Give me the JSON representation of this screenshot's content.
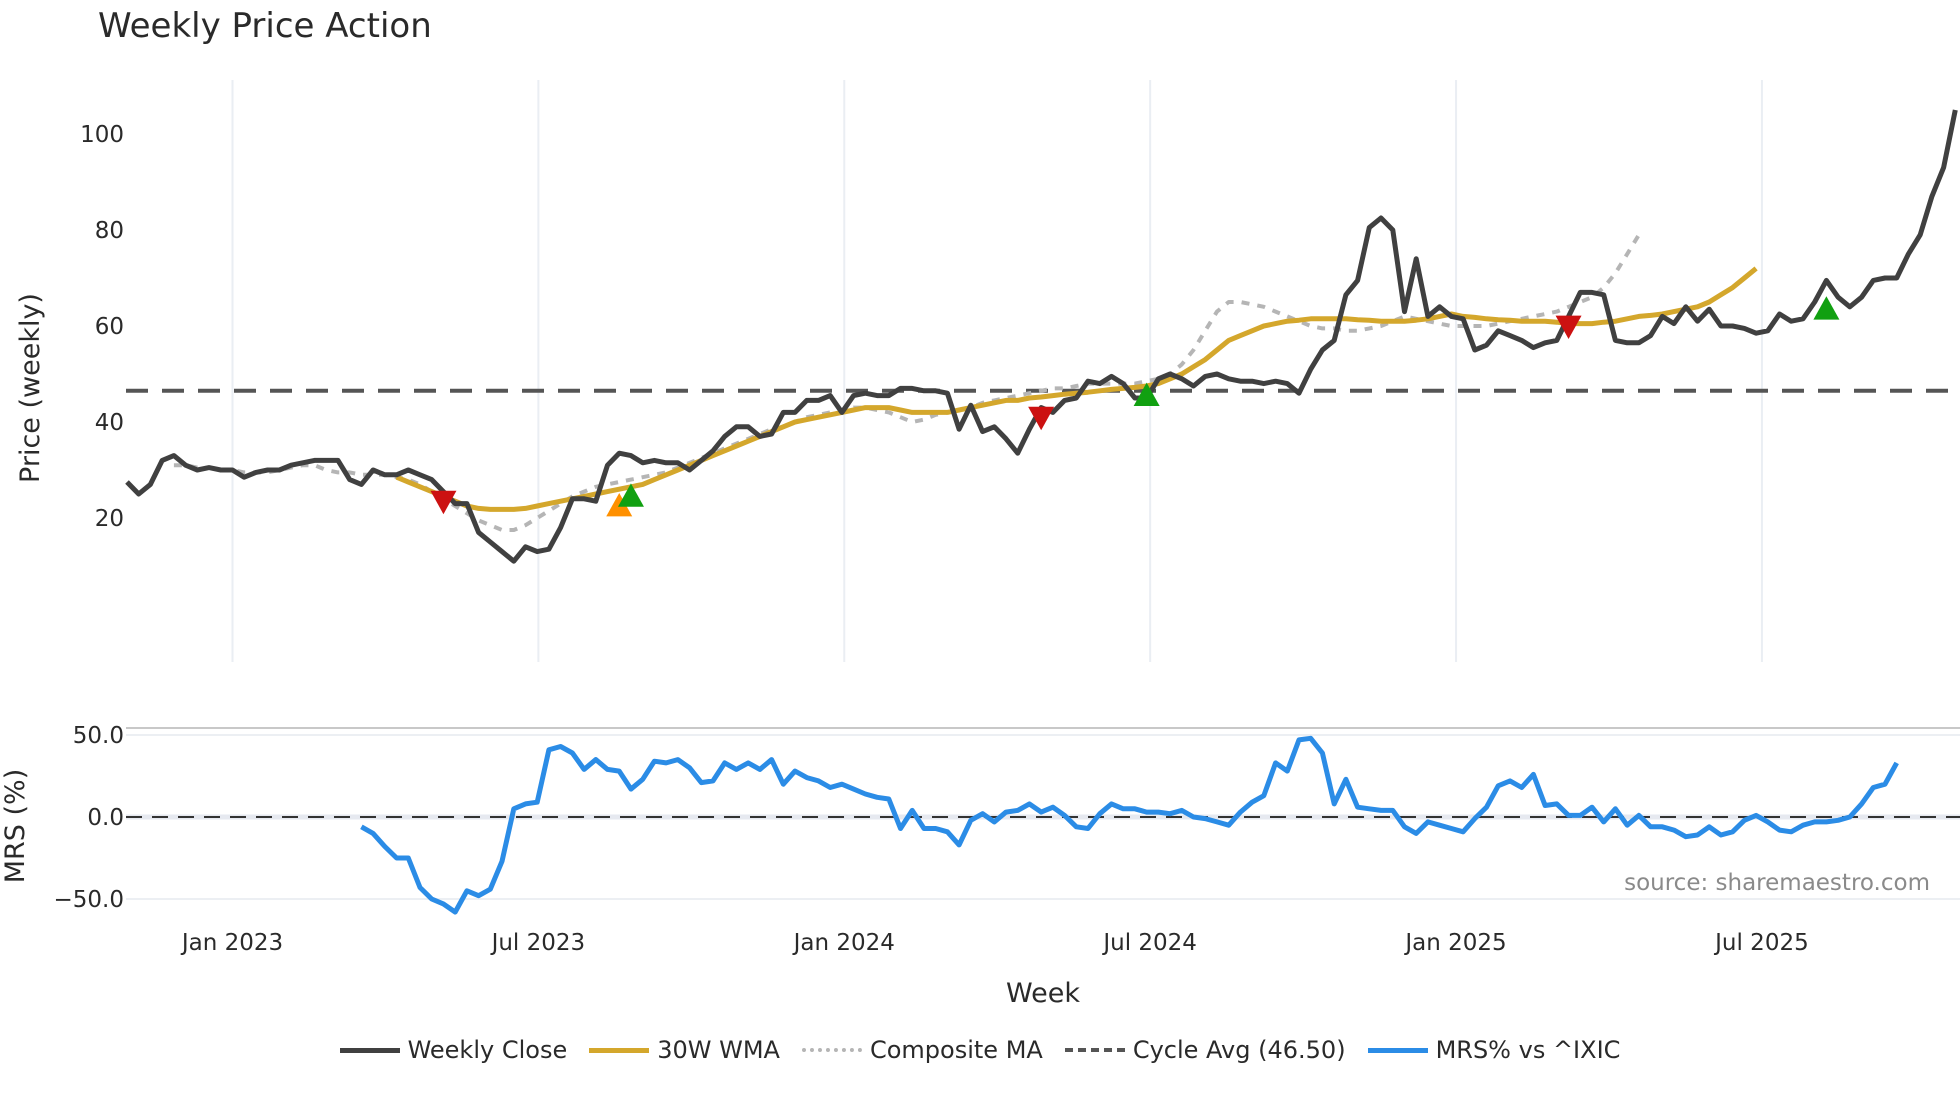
{
  "title": "Weekly Price Action",
  "source_label": "source: sharemaestro.com",
  "legend": [
    {
      "label": "Weekly Close",
      "color": "#404040",
      "style": "solid"
    },
    {
      "label": "30W WMA",
      "color": "#d4a72c",
      "style": "solid"
    },
    {
      "label": "Composite MA",
      "color": "#b5b5b5",
      "style": "dotted"
    },
    {
      "label": "Cycle Avg (46.50)",
      "color": "#555555",
      "style": "dashed"
    },
    {
      "label": "MRS% vs ^IXIC",
      "color": "#2b8ce6",
      "style": "solid"
    }
  ],
  "chart_data": [
    {
      "type": "line",
      "panel": "price",
      "title": "Weekly Price Action",
      "xlabel": "Week",
      "ylabel": "Price (weekly)",
      "yticks": [
        20,
        40,
        60,
        80,
        100
      ],
      "ylim": [
        5,
        112
      ],
      "xticks": [
        "Jan 2023",
        "Jul 2023",
        "Jan 2024",
        "Jul 2024",
        "Jan 2025",
        "Jul 2025"
      ],
      "x_start_week_offset_from_jan2023": -9,
      "grid": true,
      "series": [
        {
          "name": "Weekly Close",
          "color": "#404040",
          "start_index": 0,
          "values": [
            27.5,
            25,
            27,
            32,
            33,
            31,
            30,
            30.5,
            30,
            30,
            28.5,
            29.5,
            30,
            30,
            31,
            31.5,
            32,
            32,
            32,
            28,
            27,
            30,
            29,
            29,
            30,
            29,
            28,
            25.5,
            23,
            23,
            17,
            15,
            13,
            11,
            14,
            13,
            13.5,
            18,
            24,
            24,
            23.5,
            31,
            33.5,
            33,
            31.5,
            32,
            31.5,
            31.5,
            30,
            32,
            34,
            37,
            39,
            39,
            37,
            37.5,
            42,
            42,
            44.5,
            44.5,
            45.5,
            42,
            45.5,
            46,
            45.5,
            45.5,
            47,
            47,
            46.5,
            46.5,
            46,
            38.5,
            43.5,
            38,
            39,
            36.5,
            33.5,
            38.5,
            43,
            42,
            44.5,
            45,
            48.5,
            48,
            49.5,
            48,
            45,
            45,
            49,
            50,
            49,
            47.5,
            49.5,
            50,
            49,
            48.5,
            48.5,
            48,
            48.5,
            48,
            46,
            51,
            55,
            57,
            66.5,
            69.5,
            80.5,
            82.5,
            80,
            63,
            74,
            62,
            64,
            62,
            61.5,
            55,
            56,
            59,
            58,
            57,
            55.5,
            56.5,
            57,
            62,
            67,
            67,
            66.5,
            57,
            56.5,
            56.5,
            58,
            62,
            60.5,
            64,
            61,
            63.5,
            60,
            60,
            59.5,
            58.5,
            59,
            62.5,
            61,
            61.5,
            65,
            69.5,
            66,
            64,
            66,
            69.5,
            70,
            70,
            75,
            79,
            87,
            93,
            105
          ]
        },
        {
          "name": "30W WMA",
          "color": "#d4a72c",
          "start_index": 23,
          "values": [
            28.5,
            27.5,
            26.5,
            25.5,
            24.5,
            23.5,
            22.5,
            22,
            21.8,
            21.8,
            21.8,
            22,
            22.5,
            23,
            23.5,
            24,
            24.5,
            25,
            25.5,
            26,
            26.5,
            27,
            28,
            29,
            30,
            31,
            32,
            33,
            34,
            35,
            36,
            37,
            38,
            39,
            40,
            40.5,
            41,
            41.5,
            42,
            42.5,
            43,
            43,
            43,
            42.5,
            42,
            42,
            42,
            42,
            42.5,
            43,
            43.5,
            44,
            44.5,
            44.5,
            45,
            45.2,
            45.5,
            45.8,
            46,
            46.2,
            46.5,
            46.8,
            47,
            47.2,
            47.5,
            48,
            49,
            50,
            51.5,
            53,
            55,
            57,
            58,
            59,
            60,
            60.5,
            61,
            61.2,
            61.5,
            61.5,
            61.5,
            61.5,
            61.3,
            61.2,
            61,
            61,
            61,
            61.2,
            61.5,
            62,
            62.5,
            62,
            61.8,
            61.5,
            61.3,
            61.2,
            61,
            61,
            61,
            60.8,
            60.5,
            60.5,
            60.5,
            60.8,
            61,
            61.5,
            62,
            62.2,
            62.5,
            63,
            63.5,
            64,
            65,
            66.5,
            68,
            70,
            72
          ]
        },
        {
          "name": "Composite MA",
          "color": "#b5b5b5",
          "start_index": 4,
          "values": [
            31,
            31,
            30.5,
            30.5,
            30,
            30,
            29.5,
            29.5,
            29.5,
            30,
            30.5,
            31,
            31,
            30,
            29.5,
            29.5,
            29,
            29,
            29,
            28.5,
            28,
            27,
            25.5,
            24,
            22.5,
            21,
            19.5,
            18.5,
            17.5,
            17.5,
            18.5,
            20,
            21.5,
            23,
            24.5,
            25.5,
            26.5,
            27,
            27.5,
            28,
            28.5,
            29,
            29.5,
            30.5,
            31.5,
            32.5,
            33.5,
            34.5,
            35.5,
            36.5,
            37.5,
            38.5,
            39,
            40,
            41,
            41.5,
            42,
            42.5,
            43,
            43,
            42.5,
            42,
            41,
            40,
            40.5,
            41.5,
            42,
            42.5,
            43,
            44,
            44.5,
            45,
            45.5,
            46,
            46.5,
            47,
            47,
            47.5,
            48,
            48,
            48,
            48,
            48,
            48.5,
            49,
            50,
            52,
            55,
            59,
            63,
            65,
            65,
            64.5,
            64,
            63,
            62,
            61,
            60,
            59.5,
            59.5,
            59,
            59,
            59.5,
            60,
            61,
            62,
            61.5,
            61,
            60.5,
            60,
            60,
            60,
            60,
            60.5,
            61,
            61.5,
            62,
            62.5,
            63,
            64,
            65,
            66,
            68,
            71,
            75,
            79
          ]
        },
        {
          "name": "Cycle Avg (46.50)",
          "color": "#555555",
          "style": "dashed",
          "constant": 46.5
        }
      ],
      "markers": [
        {
          "type": "sell",
          "shape": "triangle-down",
          "color": "#cc1111",
          "week_index": 27,
          "value": 23.5
        },
        {
          "type": "buy-wma",
          "shape": "triangle-up",
          "color": "#ff9000",
          "week_index": 42,
          "value": 22.5
        },
        {
          "type": "buy",
          "shape": "triangle-up",
          "color": "#11a011",
          "week_index": 43,
          "value": 24.5
        },
        {
          "type": "sell",
          "shape": "triangle-down",
          "color": "#cc1111",
          "week_index": 78,
          "value": 41
        },
        {
          "type": "buy",
          "shape": "triangle-up",
          "color": "#11a011",
          "week_index": 87,
          "value": 45.5
        },
        {
          "type": "sell",
          "shape": "triangle-down",
          "color": "#cc1111",
          "week_index": 123,
          "value": 60
        },
        {
          "type": "buy",
          "shape": "triangle-up",
          "color": "#11a011",
          "week_index": 145,
          "value": 63.5
        }
      ]
    },
    {
      "type": "line",
      "panel": "mrs",
      "xlabel": "Week",
      "ylabel": "MRS (%)",
      "yticks": [
        50.0,
        0.0,
        -50.0
      ],
      "ylim": [
        -62,
        62
      ],
      "zero_line": "dashed",
      "series": [
        {
          "name": "MRS% vs ^IXIC",
          "color": "#2b8ce6",
          "start_index": 20,
          "values": [
            -6,
            -10,
            -18,
            -25,
            -25,
            -43,
            -50,
            -53,
            -58,
            -45,
            -48,
            -44,
            -27,
            5,
            8,
            9,
            41,
            43,
            39,
            29,
            35,
            29,
            28,
            17,
            23,
            34,
            33,
            35,
            30,
            21,
            22,
            33,
            29,
            33,
            29,
            35,
            20,
            28,
            24,
            22,
            18,
            20,
            17,
            14,
            12,
            11,
            -7,
            4,
            -7,
            -7,
            -9,
            -17,
            -2,
            2,
            -3,
            3,
            4,
            8,
            3,
            6,
            1,
            -6,
            -7,
            2,
            8,
            5,
            5,
            3,
            3,
            2,
            4,
            0,
            -1,
            -3,
            -5,
            3,
            9,
            13,
            33,
            28,
            47,
            48,
            39,
            8,
            23,
            6,
            5,
            4,
            4,
            -6,
            -10,
            -3,
            -5,
            -7,
            -9,
            -1,
            6,
            19,
            22,
            18,
            26,
            7,
            8,
            1,
            1,
            6,
            -3,
            5,
            -5,
            1,
            -6,
            -6,
            -8,
            -12,
            -11,
            -6,
            -11,
            -9,
            -2,
            1,
            -3,
            -8,
            -9,
            -5,
            -3,
            -3,
            -2,
            0,
            8,
            18,
            20,
            33
          ]
        }
      ]
    }
  ],
  "axes": {
    "price_ylabel": "Price (weekly)",
    "mrs_ylabel": "MRS (%)",
    "xlabel": "Week",
    "price_ticks": [
      "100",
      "80",
      "60",
      "40",
      "20"
    ],
    "mrs_ticks": [
      "50.0",
      "0.0",
      "−50.0"
    ],
    "x_ticks": [
      "Jan 2023",
      "Jul 2023",
      "Jan 2024",
      "Jul 2024",
      "Jan 2025",
      "Jul 2025"
    ]
  }
}
